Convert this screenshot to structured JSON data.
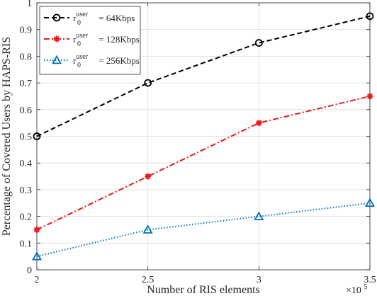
{
  "chart_data": {
    "type": "line",
    "title": "",
    "xlabel": "Number of RIS elements",
    "ylabel": "Percentage of Covered Users by HAPS-RIS",
    "x_multiplier_label": "×10",
    "x_multiplier_exponent": "5",
    "xlim": [
      2,
      3.5
    ],
    "ylim": [
      0,
      1
    ],
    "x": [
      2,
      2.5,
      3,
      3.5
    ],
    "x_tick_values": [
      2,
      2.5,
      3,
      3.5
    ],
    "x_tick_labels": [
      "2",
      "2.5",
      "3",
      "3.5"
    ],
    "y_tick_values": [
      0,
      0.1,
      0.2,
      0.3,
      0.4,
      0.5,
      0.6,
      0.7,
      0.8,
      0.9,
      1
    ],
    "y_tick_labels": [
      "0",
      "0.1",
      "0.2",
      "0.3",
      "0.4",
      "0.5",
      "0.6",
      "0.7",
      "0.8",
      "0.9",
      "1"
    ],
    "grid": true,
    "legend_position": "top-left",
    "series": [
      {
        "name": "r0user = 64Kbps",
        "legend_base": "r",
        "legend_sub": "0",
        "legend_sup": "user",
        "legend_rest": " = 64Kbps",
        "values": [
          0.5,
          0.7,
          0.85,
          0.95
        ],
        "color": "#000000",
        "dash": "dashed",
        "marker": "circle"
      },
      {
        "name": "r0user = 128Kbps",
        "legend_base": "r",
        "legend_sub": "0",
        "legend_sup": "user",
        "legend_rest": " = 128Kbps",
        "values": [
          0.15,
          0.35,
          0.55,
          0.65
        ],
        "color": "#e8191c",
        "dash": "dashdot",
        "marker": "star"
      },
      {
        "name": "r0user = 256Kbps",
        "legend_base": "r",
        "legend_sub": "0",
        "legend_sup": "user",
        "legend_rest": " = 256Kbps",
        "values": [
          0.05,
          0.15,
          0.2,
          0.25
        ],
        "color": "#0072bd",
        "dash": "dotted",
        "marker": "triangle"
      }
    ]
  }
}
